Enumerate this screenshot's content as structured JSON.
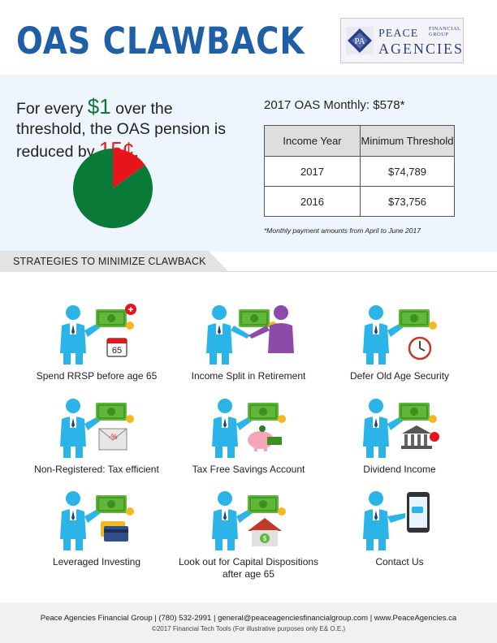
{
  "header": {
    "title": "OAS CLAWBACK",
    "logo": {
      "line1": "PEACE",
      "line1_small": "FINANCIAL GROUP",
      "line2": "AGENCIES",
      "mark_icon": "peace-agencies-logo-icon"
    }
  },
  "intro": {
    "part1": "For every ",
    "amount": "$1",
    "part2": " over the threshold, the OAS pension is reduced by ",
    "reduction": "15¢",
    "part3": "."
  },
  "chart_data": {
    "type": "pie",
    "values": [
      15,
      85
    ],
    "colors": [
      "#e8141b",
      "#0a7a38"
    ],
    "title": ""
  },
  "oas_monthly": "2017 OAS Monthly: $578*",
  "threshold_table": {
    "headers": [
      "Income Year",
      "Minimum Threshold"
    ],
    "rows": [
      [
        "2017",
        "$74,789"
      ],
      [
        "2016",
        "$73,756"
      ]
    ]
  },
  "footnote": "*Monthly payment amounts from April to June 2017",
  "strategies_heading": "STRATEGIES TO MINIMIZE CLAWBACK",
  "strategies": [
    {
      "label": "Spend RRSP before age 65",
      "icon": "rrsp-calendar-icon",
      "badge": "65"
    },
    {
      "label": "Income Split in Retirement",
      "icon": "income-split-icon"
    },
    {
      "label": "Defer Old Age Security",
      "icon": "clock-icon"
    },
    {
      "label": "Non-Registered: Tax efficient",
      "icon": "envelope-percent-icon",
      "badge": "-%"
    },
    {
      "label": "Tax Free Savings Account",
      "icon": "piggy-bank-icon"
    },
    {
      "label": "Dividend Income",
      "icon": "bank-building-icon"
    },
    {
      "label": "Leveraged Investing",
      "icon": "credit-card-icon"
    },
    {
      "label": "Look out for Capital Dispositions after age 65",
      "icon": "house-icon"
    },
    {
      "label": "Contact Us",
      "icon": "phone-icon"
    }
  ],
  "colors": {
    "title_blue": "#1f5fa8",
    "person_blue": "#2ab4e8",
    "money_green": "#5fb83a",
    "coin_gold": "#f5b820",
    "pie_red": "#e8141b",
    "pie_green": "#0a7a38"
  },
  "footer": {
    "contact": "Peace Agencies Financial Group | (780) 532-2991 | general@peaceagenciesfinancialgroup.com | www.PeaceAgencies.ca",
    "copyright": "©2017 Financial Tech Tools (For illustrative purposes only E& O.E.)"
  }
}
